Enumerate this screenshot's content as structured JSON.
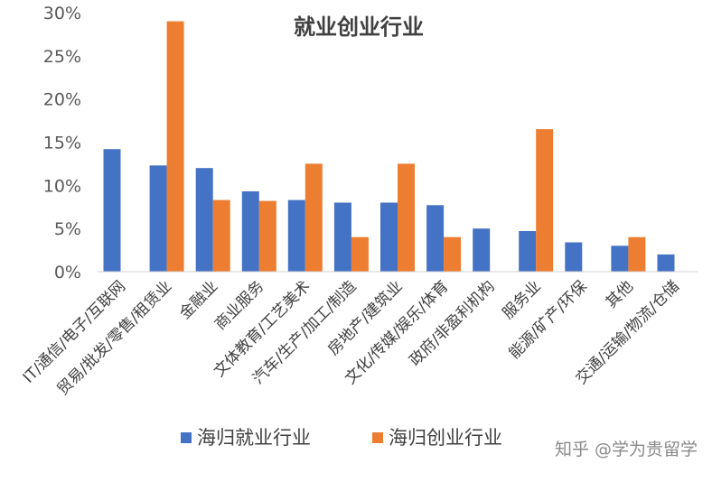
{
  "chart_data": {
    "type": "bar",
    "title": "就业创业行业",
    "xlabel": "",
    "ylabel": "",
    "ylim": [
      0,
      30
    ],
    "yticks": [
      "0%",
      "5%",
      "10%",
      "15%",
      "20%",
      "25%",
      "30%"
    ],
    "grid": false,
    "legend_position": "bottom",
    "categories": [
      "IT/通信/电子/互联网",
      "贸易/批发/零售/租赁业",
      "金融业",
      "商业服务",
      "文体教育/工艺美术",
      "汽车/生产/加工/制造",
      "房地产/建筑业",
      "文化/传媒/娱乐/体育",
      "政府/非盈利机构",
      "服务业",
      "能源/矿产/环保",
      "其他",
      "交通/运输/物流/仓储"
    ],
    "series": [
      {
        "name": "海归就业行业",
        "color": "#4472C4",
        "values": [
          14.2,
          12.3,
          12.0,
          9.3,
          8.3,
          8.0,
          8.0,
          7.7,
          5.0,
          4.7,
          3.4,
          3.0,
          2.0
        ]
      },
      {
        "name": "海归创业行业",
        "color": "#ED7D31",
        "values": [
          null,
          29.0,
          8.3,
          8.2,
          12.5,
          4.0,
          12.5,
          4.0,
          null,
          16.5,
          null,
          4.0,
          null
        ]
      }
    ]
  },
  "watermark": "知乎 @学为贵留学"
}
